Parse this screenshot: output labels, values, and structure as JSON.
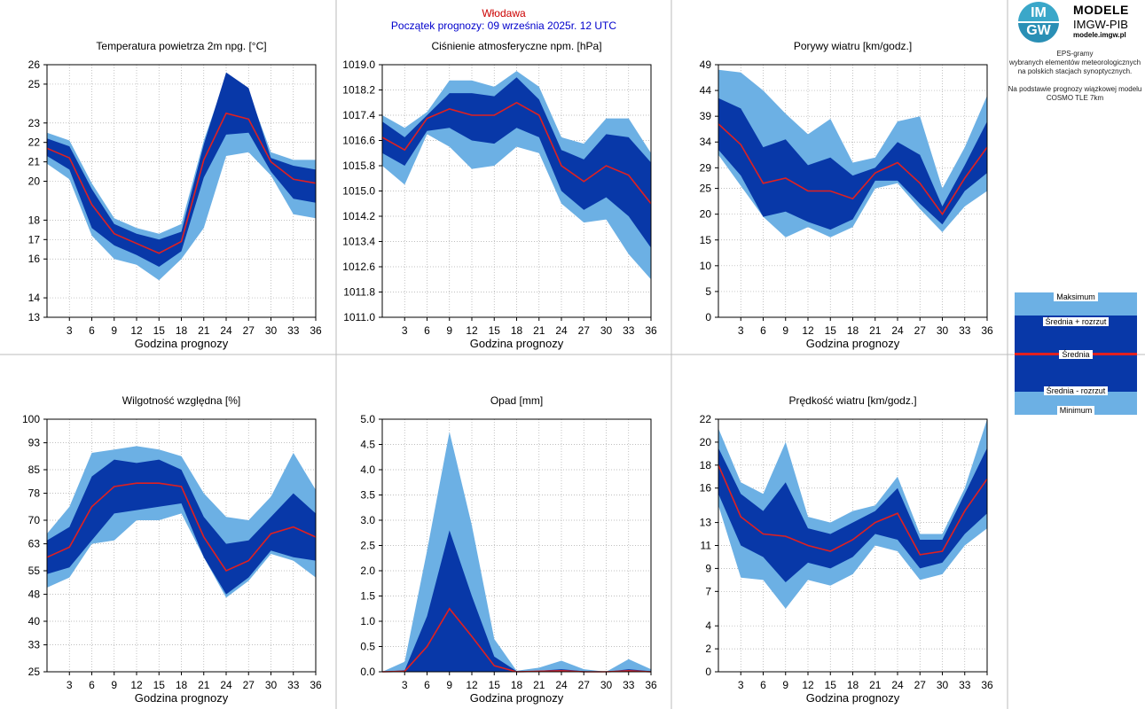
{
  "header": {
    "station": "Włodawa",
    "subtitle": "Początek prognozy: 09 września 2025r. 12 UTC"
  },
  "logo": {
    "name": "MODELE",
    "org": "IMGW-PIB",
    "url": "modele.imgw.pl",
    "mark_top": "IM",
    "mark_bottom": "GW"
  },
  "info": {
    "line1": "EPS-gramy",
    "line2": "wybranych elementów meteorologicznych",
    "line3": "na polskich stacjach  synoptycznych.",
    "line4": "Na podstawie prognozy wiązkowej modelu",
    "line5": "COSMO TLE 7km"
  },
  "legend": {
    "max": "Maksimum",
    "mean_plus": "Średnia + rozrzut",
    "mean": "Średnia",
    "mean_minus": "Średnia - rozrzut",
    "min": "Minimum"
  },
  "colors": {
    "outer_band": "#6cb0e4",
    "inner_band": "#0838a8",
    "mean_line": "#e02020",
    "grid": "#aaaaaa"
  },
  "chart_data": [
    {
      "type": "area",
      "title": "Temperatura powietrza 2m npg. [°C]",
      "xlabel": "Godzina prognozy",
      "x": [
        0,
        3,
        6,
        9,
        12,
        15,
        18,
        21,
        24,
        27,
        30,
        33,
        36
      ],
      "xlim": [
        0,
        36
      ],
      "xticks": [
        "3",
        "6",
        "9",
        "12",
        "15",
        "18",
        "21",
        "24",
        "27",
        "30",
        "33",
        "36"
      ],
      "ylim": [
        13,
        26
      ],
      "yticks": [
        "13",
        "14",
        "16",
        "17",
        "18",
        "20",
        "21",
        "22",
        "23",
        "25",
        "26"
      ],
      "max": [
        22.5,
        22.1,
        19.9,
        18.1,
        17.6,
        17.3,
        17.8,
        22.1,
        25.4,
        24.6,
        21.5,
        21.1,
        21.1
      ],
      "mean_plus": [
        22.2,
        21.8,
        19.6,
        17.8,
        17.3,
        17.0,
        17.4,
        21.9,
        25.6,
        24.8,
        21.2,
        20.8,
        20.6
      ],
      "mean": [
        21.7,
        21.2,
        18.8,
        17.3,
        16.8,
        16.3,
        16.9,
        21.1,
        23.5,
        23.2,
        21.0,
        20.1,
        19.9
      ],
      "mean_minus": [
        21.3,
        20.6,
        17.6,
        16.7,
        16.2,
        15.6,
        16.4,
        20.2,
        22.4,
        22.5,
        20.5,
        19.1,
        18.9
      ],
      "min": [
        20.9,
        20.1,
        17.2,
        16.0,
        15.7,
        14.9,
        16.0,
        17.6,
        21.3,
        21.5,
        20.3,
        18.3,
        18.1
      ]
    },
    {
      "type": "area",
      "title": "Ciśnienie atmosferyczne npm. [hPa]",
      "xlabel": "Godzina prognozy",
      "x": [
        0,
        3,
        6,
        9,
        12,
        15,
        18,
        21,
        24,
        27,
        30,
        33,
        36
      ],
      "xlim": [
        0,
        36
      ],
      "xticks": [
        "3",
        "6",
        "9",
        "12",
        "15",
        "18",
        "21",
        "24",
        "27",
        "30",
        "33",
        "36"
      ],
      "ylim": [
        1011.0,
        1019.0
      ],
      "yticks": [
        "1011.0",
        "1011.8",
        "1012.6",
        "1013.4",
        "1014.2",
        "1015.0",
        "1015.8",
        "1016.6",
        "1017.4",
        "1018.2",
        "1019.0"
      ],
      "max": [
        1017.4,
        1017.0,
        1017.5,
        1018.5,
        1018.5,
        1018.3,
        1018.8,
        1018.3,
        1016.7,
        1016.5,
        1017.3,
        1017.3,
        1016.2
      ],
      "mean_plus": [
        1017.2,
        1016.7,
        1017.4,
        1018.1,
        1018.1,
        1018.0,
        1018.6,
        1017.9,
        1016.3,
        1016.0,
        1016.8,
        1016.7,
        1015.9
      ],
      "mean": [
        1016.7,
        1016.3,
        1017.3,
        1017.6,
        1017.4,
        1017.4,
        1017.8,
        1017.4,
        1015.8,
        1015.3,
        1015.8,
        1015.5,
        1014.6
      ],
      "mean_minus": [
        1016.2,
        1015.8,
        1016.9,
        1017.0,
        1016.6,
        1016.5,
        1017.0,
        1016.7,
        1015.0,
        1014.4,
        1014.8,
        1014.2,
        1013.2
      ],
      "min": [
        1015.8,
        1015.2,
        1016.8,
        1016.4,
        1015.7,
        1015.8,
        1016.4,
        1016.2,
        1014.6,
        1014.0,
        1014.1,
        1013.0,
        1012.2
      ]
    },
    {
      "type": "area",
      "title": "Porywy wiatru [km/godz.]",
      "xlabel": "Godzina prognozy",
      "x": [
        0,
        3,
        6,
        9,
        12,
        15,
        18,
        21,
        24,
        27,
        30,
        33,
        36
      ],
      "xlim": [
        0,
        36
      ],
      "xticks": [
        "3",
        "6",
        "9",
        "12",
        "15",
        "18",
        "21",
        "24",
        "27",
        "30",
        "33",
        "36"
      ],
      "ylim": [
        0,
        49
      ],
      "yticks": [
        "0",
        "5",
        "10",
        "15",
        "20",
        "25",
        "29",
        "34",
        "39",
        "44",
        "49"
      ],
      "max": [
        48.0,
        47.5,
        44.0,
        39.5,
        35.5,
        38.5,
        30.0,
        31.0,
        38.0,
        39.0,
        25.0,
        33.0,
        43.0
      ],
      "mean_plus": [
        42.5,
        40.5,
        33.0,
        34.5,
        29.5,
        31.0,
        27.5,
        29.0,
        34.0,
        31.5,
        21.5,
        29.5,
        38.0
      ],
      "mean": [
        37.5,
        33.5,
        26.0,
        27.0,
        24.5,
        24.5,
        23.0,
        28.0,
        30.0,
        26.0,
        20.0,
        27.0,
        33.0
      ],
      "mean_minus": [
        32.5,
        27.5,
        19.5,
        20.5,
        18.5,
        17.0,
        19.0,
        26.5,
        26.5,
        22.0,
        18.0,
        24.5,
        28.0
      ],
      "min": [
        31.5,
        25.5,
        19.5,
        15.5,
        17.5,
        15.5,
        17.5,
        25.0,
        26.0,
        21.0,
        16.5,
        21.5,
        24.5
      ]
    },
    {
      "type": "area",
      "title": "Wilgotność względna [%]",
      "xlabel": "Godzina prognozy",
      "x": [
        0,
        3,
        6,
        9,
        12,
        15,
        18,
        21,
        24,
        27,
        30,
        33,
        36
      ],
      "xlim": [
        0,
        36
      ],
      "xticks": [
        "3",
        "6",
        "9",
        "12",
        "15",
        "18",
        "21",
        "24",
        "27",
        "30",
        "33",
        "36"
      ],
      "ylim": [
        25,
        100
      ],
      "yticks": [
        "25",
        "33",
        "40",
        "48",
        "55",
        "63",
        "70",
        "78",
        "85",
        "93",
        "100"
      ],
      "max": [
        66,
        74,
        90,
        91,
        92,
        91,
        89,
        78,
        71,
        70,
        77,
        90,
        79
      ],
      "mean_plus": [
        64,
        68,
        83,
        88,
        87,
        88,
        85,
        71,
        63,
        64,
        71,
        78,
        72
      ],
      "mean": [
        59,
        62,
        74,
        80,
        81,
        81,
        80,
        65,
        55,
        58,
        66,
        68,
        65
      ],
      "mean_minus": [
        54,
        56,
        64,
        72,
        73,
        74,
        75,
        59,
        48,
        53,
        61,
        59,
        58
      ],
      "min": [
        50,
        53,
        63,
        64,
        70,
        70,
        72,
        59,
        47,
        52,
        60,
        58,
        53
      ]
    },
    {
      "type": "area",
      "title": "Opad [mm]",
      "xlabel": "Godzina prognozy",
      "x": [
        0,
        3,
        6,
        9,
        12,
        15,
        18,
        21,
        24,
        27,
        30,
        33,
        36
      ],
      "xlim": [
        0,
        36
      ],
      "xticks": [
        "3",
        "6",
        "9",
        "12",
        "15",
        "18",
        "21",
        "24",
        "27",
        "30",
        "33",
        "36"
      ],
      "ylim": [
        0,
        5
      ],
      "yticks": [
        "0.0",
        "0.5",
        "1.0",
        "1.5",
        "2.0",
        "2.5",
        "3.0",
        "3.5",
        "4.0",
        "4.5",
        "5.0"
      ],
      "max": [
        0.0,
        0.2,
        2.4,
        4.75,
        2.9,
        0.65,
        0.02,
        0.08,
        0.22,
        0.05,
        0.0,
        0.25,
        0.05
      ],
      "mean_plus": [
        0.0,
        0.03,
        1.1,
        2.8,
        1.5,
        0.3,
        0.01,
        0.02,
        0.05,
        0.01,
        0.0,
        0.05,
        0.01
      ],
      "mean": [
        0.0,
        0.01,
        0.5,
        1.25,
        0.7,
        0.12,
        0.0,
        0.01,
        0.02,
        0.0,
        0.0,
        0.02,
        0.0
      ],
      "mean_minus": [
        0.0,
        0.0,
        0.0,
        0.0,
        0.0,
        0.0,
        0.0,
        0.0,
        0.0,
        0.0,
        0.0,
        0.0,
        0.0
      ],
      "min": [
        0.0,
        0.0,
        0.0,
        0.0,
        0.0,
        0.0,
        0.0,
        0.0,
        0.0,
        0.0,
        0.0,
        0.0,
        0.0
      ]
    },
    {
      "type": "area",
      "title": "Prędkość wiatru [km/godz.]",
      "xlabel": "Godzina prognozy",
      "x": [
        0,
        3,
        6,
        9,
        12,
        15,
        18,
        21,
        24,
        27,
        30,
        33,
        36
      ],
      "xlim": [
        0,
        36
      ],
      "xticks": [
        "3",
        "6",
        "9",
        "12",
        "15",
        "18",
        "21",
        "24",
        "27",
        "30",
        "33",
        "36"
      ],
      "ylim": [
        0,
        22
      ],
      "yticks": [
        "0",
        "2",
        "4",
        "7",
        "9",
        "11",
        "13",
        "16",
        "18",
        "20",
        "22"
      ],
      "max": [
        21.2,
        16.5,
        15.5,
        20.0,
        13.5,
        13.0,
        14.0,
        14.5,
        17.0,
        12.0,
        12.0,
        16.0,
        22.0
      ],
      "mean_plus": [
        19.5,
        15.5,
        14.0,
        16.5,
        12.5,
        12.0,
        13.0,
        14.0,
        16.0,
        11.5,
        11.5,
        15.5,
        19.5
      ],
      "mean": [
        18.0,
        13.5,
        12.0,
        11.8,
        11.0,
        10.5,
        11.5,
        13.0,
        13.8,
        10.2,
        10.5,
        14.0,
        16.8
      ],
      "mean_minus": [
        15.5,
        11.0,
        10.0,
        7.8,
        9.5,
        9.0,
        10.0,
        12.0,
        11.5,
        9.0,
        9.5,
        12.0,
        13.8
      ],
      "min": [
        14.5,
        8.2,
        8.0,
        5.5,
        8.0,
        7.5,
        8.5,
        11.0,
        10.5,
        8.0,
        8.5,
        11.0,
        12.5
      ]
    }
  ]
}
